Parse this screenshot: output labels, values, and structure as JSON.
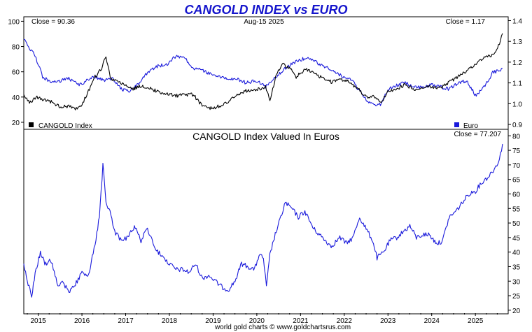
{
  "title": "CANGOLD INDEX vs EURO",
  "footer": "world gold charts © www.goldchartsrus.com",
  "colors": {
    "title": "#1515cc",
    "index": "#000000",
    "euro": "#1a1adb",
    "axis": "#000000"
  },
  "chart_data": [
    {
      "type": "line",
      "top_left_label": "Close = 90.36",
      "top_center_label": "Aug-15  2025",
      "top_right_label": "Close = 1.17",
      "legend": [
        {
          "name": "CANGOLD Index",
          "color": "#000000",
          "position": "bottom-left"
        },
        {
          "name": "Euro",
          "color": "#1a1adb",
          "position": "bottom-right"
        }
      ],
      "y_left": {
        "ticks": [
          20,
          40,
          60,
          80,
          100
        ],
        "range": [
          15,
          103
        ]
      },
      "y_right": {
        "ticks": [
          "0.9",
          "1.0",
          "1.1",
          "1.2",
          "1.3",
          "1.4"
        ],
        "range": [
          0.88,
          1.415
        ]
      },
      "series": [
        {
          "name": "CANGOLD Index",
          "axis": "left",
          "x": [
            2014.67,
            2014.8,
            2014.95,
            2015.1,
            2015.3,
            2015.5,
            2015.7,
            2015.85,
            2016.0,
            2016.15,
            2016.3,
            2016.45,
            2016.55,
            2016.65,
            2016.8,
            2016.95,
            2017.15,
            2017.35,
            2017.55,
            2017.75,
            2017.95,
            2018.15,
            2018.35,
            2018.55,
            2018.75,
            2018.95,
            2019.15,
            2019.35,
            2019.55,
            2019.75,
            2019.95,
            2020.1,
            2020.2,
            2020.3,
            2020.45,
            2020.6,
            2020.75,
            2020.9,
            2021.1,
            2021.3,
            2021.5,
            2021.7,
            2021.9,
            2022.1,
            2022.3,
            2022.5,
            2022.7,
            2022.85,
            2023.0,
            2023.2,
            2023.4,
            2023.6,
            2023.8,
            2024.0,
            2024.2,
            2024.4,
            2024.6,
            2024.8,
            2025.0,
            2025.2,
            2025.4,
            2025.55,
            2025.62
          ],
          "y": [
            42,
            35,
            40,
            38,
            36,
            32,
            33,
            31,
            34,
            45,
            56,
            63,
            72,
            55,
            52,
            50,
            46,
            49,
            47,
            44,
            43,
            41,
            42,
            42,
            33,
            31,
            33,
            36,
            42,
            45,
            46,
            47,
            48,
            38,
            58,
            66,
            63,
            56,
            62,
            59,
            55,
            52,
            54,
            52,
            47,
            40,
            40,
            36,
            44,
            46,
            50,
            46,
            48,
            48,
            47,
            52,
            56,
            61,
            66,
            71,
            73,
            82,
            90.36
          ]
        },
        {
          "name": "Euro",
          "axis": "right",
          "x": [
            2014.67,
            2014.8,
            2014.95,
            2015.1,
            2015.3,
            2015.5,
            2015.7,
            2015.85,
            2016.0,
            2016.15,
            2016.3,
            2016.5,
            2016.7,
            2016.9,
            2017.1,
            2017.3,
            2017.5,
            2017.7,
            2017.95,
            2018.15,
            2018.35,
            2018.55,
            2018.75,
            2018.95,
            2019.15,
            2019.35,
            2019.55,
            2019.75,
            2019.95,
            2020.1,
            2020.2,
            2020.3,
            2020.5,
            2020.7,
            2020.95,
            2021.15,
            2021.35,
            2021.55,
            2021.75,
            2021.95,
            2022.15,
            2022.35,
            2022.5,
            2022.7,
            2022.85,
            2023.0,
            2023.2,
            2023.4,
            2023.6,
            2023.8,
            2024.0,
            2024.2,
            2024.4,
            2024.6,
            2024.8,
            2025.0,
            2025.2,
            2025.4,
            2025.55,
            2025.62
          ],
          "y": [
            1.31,
            1.27,
            1.22,
            1.13,
            1.1,
            1.11,
            1.12,
            1.1,
            1.09,
            1.12,
            1.13,
            1.11,
            1.12,
            1.07,
            1.06,
            1.1,
            1.15,
            1.18,
            1.19,
            1.23,
            1.22,
            1.17,
            1.16,
            1.14,
            1.13,
            1.12,
            1.12,
            1.1,
            1.11,
            1.1,
            1.08,
            1.1,
            1.14,
            1.18,
            1.21,
            1.22,
            1.2,
            1.18,
            1.16,
            1.13,
            1.12,
            1.06,
            1.02,
            0.99,
            1.0,
            1.07,
            1.09,
            1.1,
            1.08,
            1.08,
            1.09,
            1.08,
            1.07,
            1.1,
            1.11,
            1.04,
            1.08,
            1.15,
            1.16,
            1.17
          ]
        }
      ]
    },
    {
      "type": "line",
      "title": "CANGOLD Index Valued In Euros",
      "top_right_label": "Close = 77.207",
      "y_right": {
        "ticks": [
          20,
          25,
          30,
          35,
          40,
          45,
          50,
          55,
          60,
          65,
          70,
          75,
          80
        ],
        "range": [
          19,
          82
        ]
      },
      "x_axis": {
        "ticks": [
          "2015",
          "2016",
          "2017",
          "2018",
          "2019",
          "2020",
          "2021",
          "2022",
          "2023",
          "2024",
          "2025"
        ],
        "tick_years": [
          2015,
          2016,
          2017,
          2018,
          2019,
          2020,
          2021,
          2022,
          2023,
          2024,
          2025
        ],
        "range": [
          2014.67,
          2025.75
        ]
      },
      "series": [
        {
          "name": "CANGOLD Index Valued In Euros",
          "axis": "right",
          "x": [
            2014.67,
            2014.75,
            2014.85,
            2014.95,
            2015.05,
            2015.15,
            2015.3,
            2015.45,
            2015.55,
            2015.7,
            2015.85,
            2016.0,
            2016.15,
            2016.3,
            2016.4,
            2016.48,
            2016.55,
            2016.62,
            2016.75,
            2016.9,
            2017.05,
            2017.2,
            2017.35,
            2017.5,
            2017.65,
            2017.85,
            2018.0,
            2018.15,
            2018.3,
            2018.45,
            2018.6,
            2018.75,
            2018.9,
            2019.05,
            2019.2,
            2019.35,
            2019.5,
            2019.65,
            2019.8,
            2019.95,
            2020.05,
            2020.15,
            2020.22,
            2020.3,
            2020.4,
            2020.55,
            2020.65,
            2020.8,
            2020.95,
            2021.1,
            2021.3,
            2021.5,
            2021.7,
            2021.9,
            2022.05,
            2022.2,
            2022.35,
            2022.5,
            2022.65,
            2022.75,
            2022.9,
            2023.05,
            2023.2,
            2023.35,
            2023.5,
            2023.65,
            2023.8,
            2023.95,
            2024.05,
            2024.15,
            2024.25,
            2024.4,
            2024.55,
            2024.7,
            2024.85,
            2025.0,
            2025.15,
            2025.3,
            2025.45,
            2025.55,
            2025.62
          ],
          "y": [
            36,
            30,
            25,
            34,
            40,
            36,
            37,
            28,
            30,
            26,
            29,
            33,
            32,
            43,
            52,
            70,
            57,
            55,
            47,
            44,
            45,
            49,
            44,
            48,
            42,
            38,
            36,
            34,
            34,
            33,
            36,
            31,
            32,
            30,
            28,
            27,
            30,
            36,
            35,
            34,
            39,
            38,
            28,
            39,
            45,
            52,
            57,
            55,
            52,
            54,
            48,
            45,
            42,
            45,
            43,
            45,
            52,
            48,
            44,
            38,
            40,
            44,
            45,
            47,
            49,
            45,
            46,
            46,
            44,
            43,
            44,
            52,
            54,
            57,
            60,
            61,
            64,
            66,
            69,
            72,
            77.2
          ]
        }
      ]
    }
  ]
}
